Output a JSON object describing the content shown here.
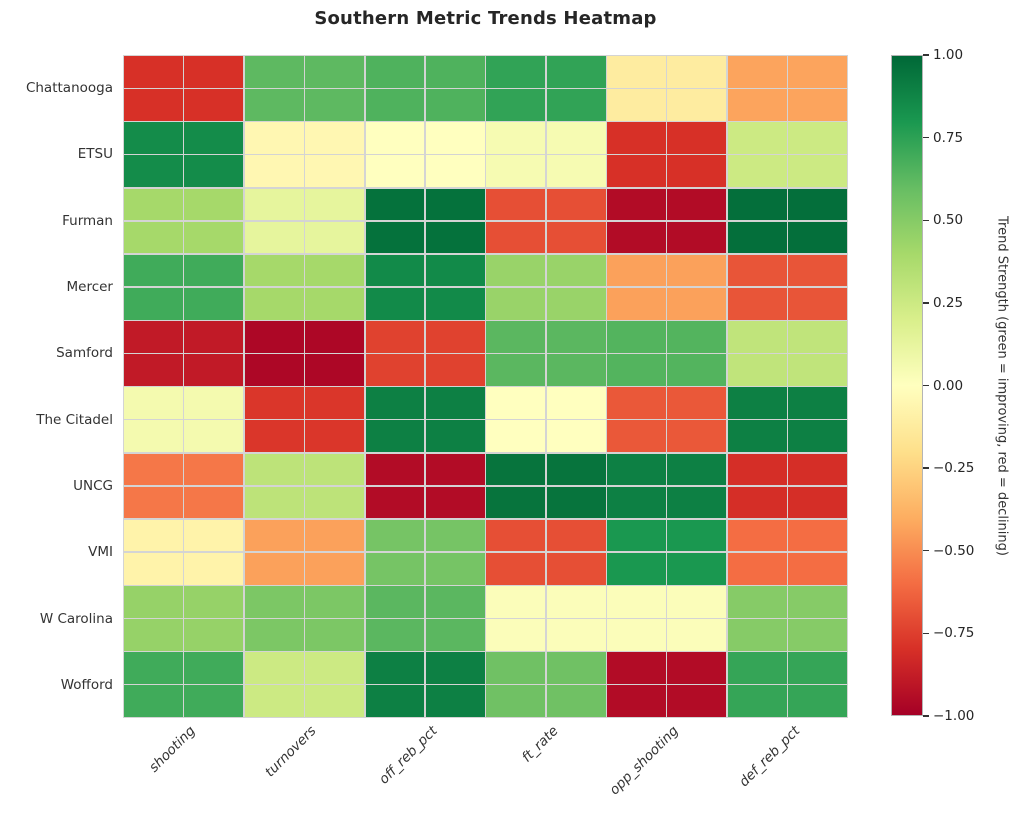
{
  "title": "Southern Metric Trends Heatmap",
  "chart_data": {
    "type": "heatmap",
    "title": "Southern Metric Trends Heatmap",
    "rows": [
      "Chattanooga",
      "ETSU",
      "Furman",
      "Mercer",
      "Samford",
      "The Citadel",
      "UNCG",
      "VMI",
      "W Carolina",
      "Wofford"
    ],
    "columns": [
      "shooting",
      "turnovers",
      "off_reb_pct",
      "ft_rate",
      "opp_shooting",
      "def_reb_pct"
    ],
    "values": [
      [
        -0.8,
        0.62,
        0.66,
        0.74,
        -0.12,
        -0.43
      ],
      [
        0.85,
        -0.05,
        0.0,
        0.05,
        -0.8,
        0.25
      ],
      [
        0.4,
        0.13,
        0.96,
        -0.7,
        -0.95,
        0.97
      ],
      [
        0.7,
        0.4,
        0.86,
        0.44,
        -0.44,
        -0.68
      ],
      [
        -0.89,
        -0.97,
        -0.74,
        0.63,
        0.65,
        0.3
      ],
      [
        0.06,
        -0.78,
        0.9,
        0.0,
        -0.67,
        0.9
      ],
      [
        -0.57,
        0.31,
        -0.95,
        0.95,
        0.9,
        -0.81
      ],
      [
        -0.08,
        -0.44,
        0.55,
        -0.7,
        0.8,
        -0.6
      ],
      [
        0.45,
        0.53,
        0.63,
        0.02,
        0.02,
        0.5
      ],
      [
        0.7,
        0.25,
        0.9,
        0.57,
        -0.95,
        0.73
      ]
    ],
    "vmin": -1,
    "vmax": 1,
    "subcells_per_value": 2,
    "grid_line_color": "#d4d4d4",
    "colormap_name": "RdYlGn",
    "colormap_stops": [
      "#a50026",
      "#d73027",
      "#f46d43",
      "#fdae61",
      "#fee08b",
      "#ffffbf",
      "#d9ef8b",
      "#a6d96a",
      "#66bd63",
      "#1a9850",
      "#006837"
    ],
    "legend_position": "right",
    "grid": true,
    "colorbar": {
      "label": "Trend Strength (green = improving, red = declining)",
      "ticks": [
        "1.00",
        "0.75",
        "0.50",
        "0.25",
        "0.00",
        "−0.25",
        "−0.50",
        "−0.75",
        "−1.00"
      ],
      "tick_values": [
        1.0,
        0.75,
        0.5,
        0.25,
        0.0,
        -0.25,
        -0.5,
        -0.75,
        -1.0
      ]
    }
  }
}
